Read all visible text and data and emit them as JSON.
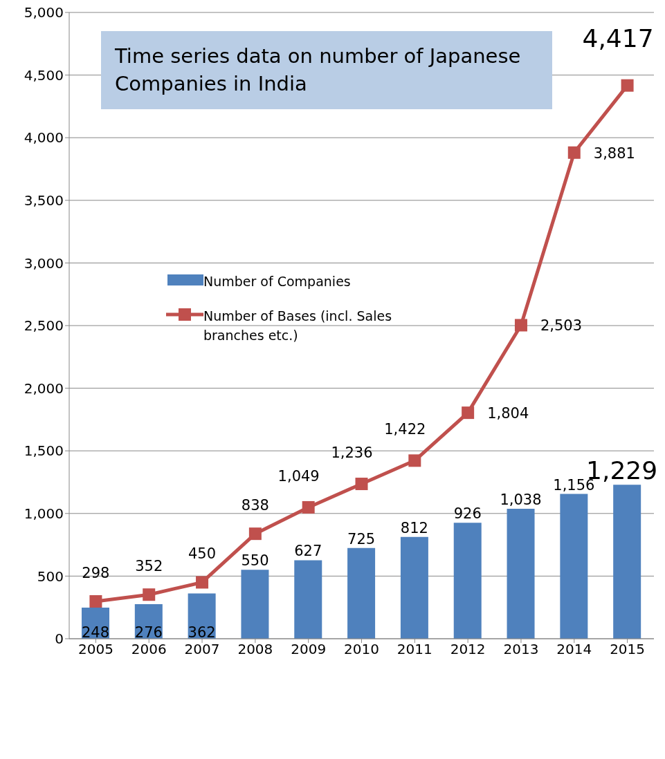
{
  "chart_data": {
    "type": "bar",
    "title": "Time series data on number of Japanese Companies in India",
    "categories": [
      "2005",
      "2006",
      "2007",
      "2008",
      "2009",
      "2010",
      "2011",
      "2012",
      "2013",
      "2014",
      "2015"
    ],
    "series": [
      {
        "name": "Number of Companies",
        "color": "#4f81bd",
        "values": [
          248,
          276,
          362,
          550,
          627,
          725,
          812,
          926,
          1038,
          1156,
          1229
        ],
        "value_labels": [
          "248",
          "276",
          "362",
          "550",
          "627",
          "725",
          "812",
          "926",
          "1,038",
          "1,156",
          "1,229"
        ]
      },
      {
        "name": "Number of Bases (incl. Sales branches etc.)",
        "type": "line",
        "color": "#c0504d",
        "values": [
          298,
          352,
          450,
          838,
          1049,
          1236,
          1422,
          1804,
          2503,
          3881,
          4417
        ],
        "value_labels": [
          "298",
          "352",
          "450",
          "838",
          "1,049",
          "1,236",
          "1,422",
          "1,804",
          "2,503",
          "3,881",
          "4,417"
        ]
      }
    ],
    "ylim": [
      0,
      5000
    ],
    "yticks": [
      0,
      500,
      {
        "value": 1000,
        "label": "1,000"
      },
      {
        "value": 1500,
        "label": "1,500"
      },
      {
        "value": 2000,
        "label": "2,000"
      },
      {
        "value": 2500,
        "label": "2,500"
      },
      {
        "value": 3000,
        "label": "3,000"
      },
      {
        "value": 3500,
        "label": "3,500"
      },
      {
        "value": 4000,
        "label": "4,000"
      },
      {
        "value": 4500,
        "label": "4,500"
      },
      {
        "value": 5000,
        "label": "5,000"
      }
    ],
    "grid": "y",
    "legend": "center",
    "marker": "square",
    "line_style": "solid"
  }
}
